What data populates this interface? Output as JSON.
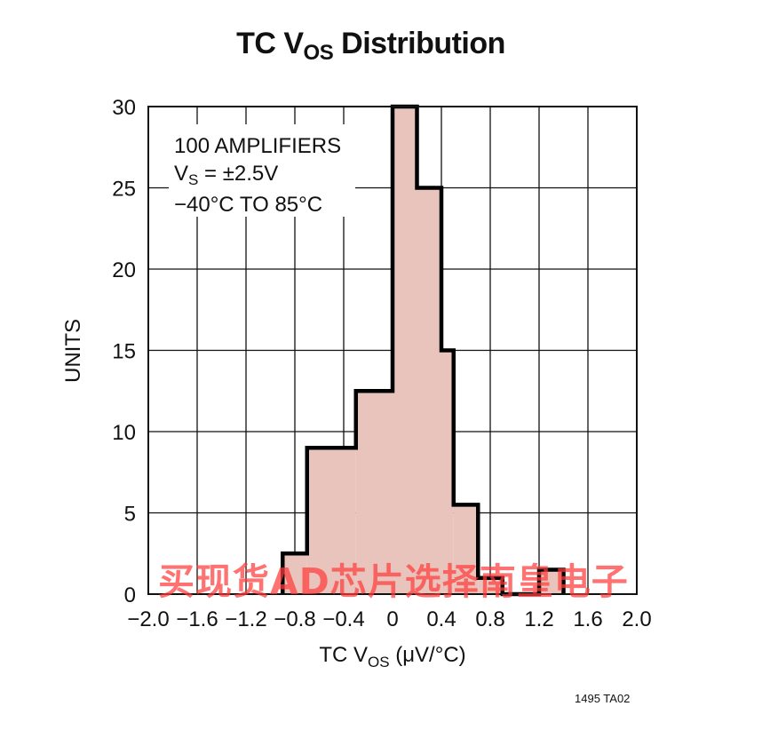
{
  "chart_data": {
    "type": "bar",
    "title": "TC V",
    "title_sub": "OS",
    "title_rest": " Distribution",
    "xlabel": "TC V",
    "xlabel_sub": "OS",
    "xlabel_rest": " (μV/°C)",
    "ylabel": "UNITS",
    "xlim": [
      -2.0,
      2.0
    ],
    "ylim": [
      0,
      30
    ],
    "x_ticks": [
      "−2.0",
      "−1.6",
      "−1.2",
      "−0.8",
      "−0.4",
      "0",
      "0.4",
      "0.8",
      "1.2",
      "1.6",
      "2.0"
    ],
    "y_ticks": [
      "0",
      "5",
      "10",
      "15",
      "20",
      "25",
      "30"
    ],
    "grid": true,
    "bin_edges": [
      -0.9,
      -0.7,
      -0.3,
      0.0,
      0.2,
      0.4,
      0.5,
      0.7,
      0.9,
      1.2,
      1.4
    ],
    "values": [
      2.5,
      9,
      12.5,
      30,
      25,
      15,
      5.5,
      1,
      0,
      1.5
    ],
    "fill_color": "#e8c4bc",
    "annotations": [
      "100 AMPLIFIERS",
      "V",
      "S",
      " = ±2.5V",
      "−40°C TO 85°C"
    ]
  },
  "part_number": "1495 TA02",
  "watermark": "买现货AD芯片选择南皇电子"
}
